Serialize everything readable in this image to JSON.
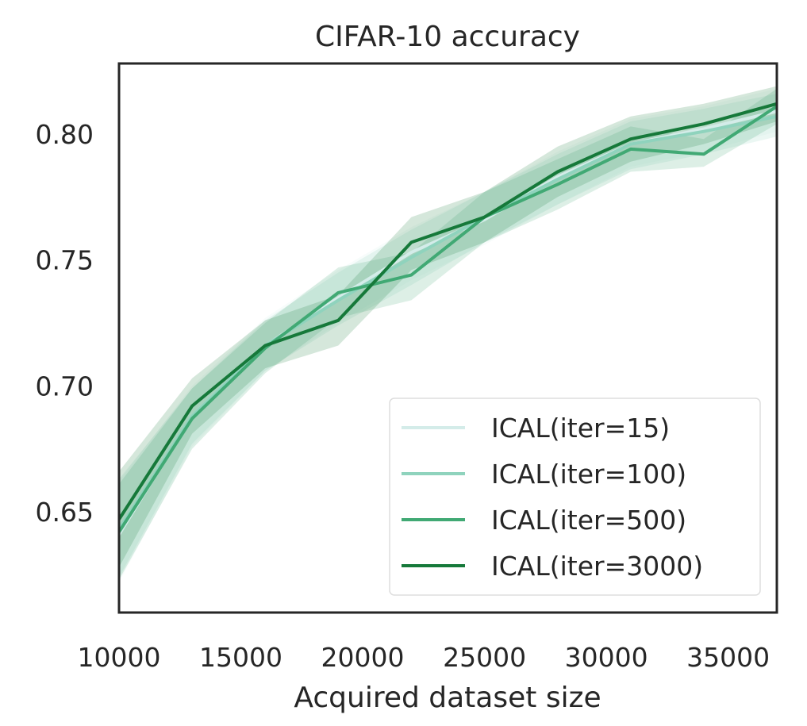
{
  "chart_data": {
    "type": "line",
    "title": "CIFAR-10 accuracy",
    "xlabel": "Acquired dataset size",
    "ylabel": "",
    "xlim": [
      10000,
      37000
    ],
    "ylim": [
      0.61,
      0.828
    ],
    "xticks": [
      10000,
      15000,
      20000,
      25000,
      30000,
      35000
    ],
    "yticks": [
      0.65,
      0.7,
      0.75,
      0.8
    ],
    "ytick_labels": [
      "0.65",
      "0.70",
      "0.75",
      "0.80"
    ],
    "grid": false,
    "legend_position": "lower-right",
    "x": [
      10000,
      13000,
      16000,
      19000,
      22000,
      25000,
      28000,
      31000,
      34000,
      37000
    ],
    "series": [
      {
        "name": "ICAL(iter=15)",
        "color": "#d4ece9",
        "values": [
          0.641,
          0.688,
          0.716,
          0.735,
          0.753,
          0.766,
          0.783,
          0.796,
          0.802,
          0.809
        ],
        "lower": [
          0.622,
          0.676,
          0.706,
          0.725,
          0.742,
          0.756,
          0.772,
          0.787,
          0.793,
          0.801
        ],
        "upper": [
          0.662,
          0.7,
          0.727,
          0.746,
          0.763,
          0.777,
          0.793,
          0.806,
          0.811,
          0.818
        ]
      },
      {
        "name": "ICAL(iter=100)",
        "color": "#8fd3bd",
        "values": [
          0.643,
          0.688,
          0.716,
          0.734,
          0.751,
          0.767,
          0.782,
          0.796,
          0.801,
          0.807
        ],
        "lower": [
          0.624,
          0.677,
          0.706,
          0.724,
          0.74,
          0.757,
          0.772,
          0.786,
          0.792,
          0.799
        ],
        "upper": [
          0.663,
          0.699,
          0.726,
          0.745,
          0.762,
          0.777,
          0.792,
          0.805,
          0.81,
          0.816
        ]
      },
      {
        "name": "ICAL(iter=500)",
        "color": "#41a974",
        "values": [
          0.642,
          0.687,
          0.715,
          0.737,
          0.744,
          0.767,
          0.78,
          0.794,
          0.792,
          0.811
        ],
        "lower": [
          0.623,
          0.675,
          0.705,
          0.727,
          0.734,
          0.757,
          0.77,
          0.785,
          0.787,
          0.804
        ],
        "upper": [
          0.661,
          0.699,
          0.725,
          0.747,
          0.753,
          0.777,
          0.79,
          0.803,
          0.798,
          0.818
        ]
      },
      {
        "name": "ICAL(iter=3000)",
        "color": "#16793a",
        "values": [
          0.647,
          0.692,
          0.716,
          0.726,
          0.757,
          0.767,
          0.785,
          0.798,
          0.804,
          0.812
        ],
        "lower": [
          0.628,
          0.681,
          0.707,
          0.716,
          0.746,
          0.757,
          0.775,
          0.789,
          0.796,
          0.805
        ],
        "upper": [
          0.666,
          0.703,
          0.726,
          0.736,
          0.767,
          0.777,
          0.795,
          0.807,
          0.812,
          0.819
        ]
      }
    ]
  }
}
